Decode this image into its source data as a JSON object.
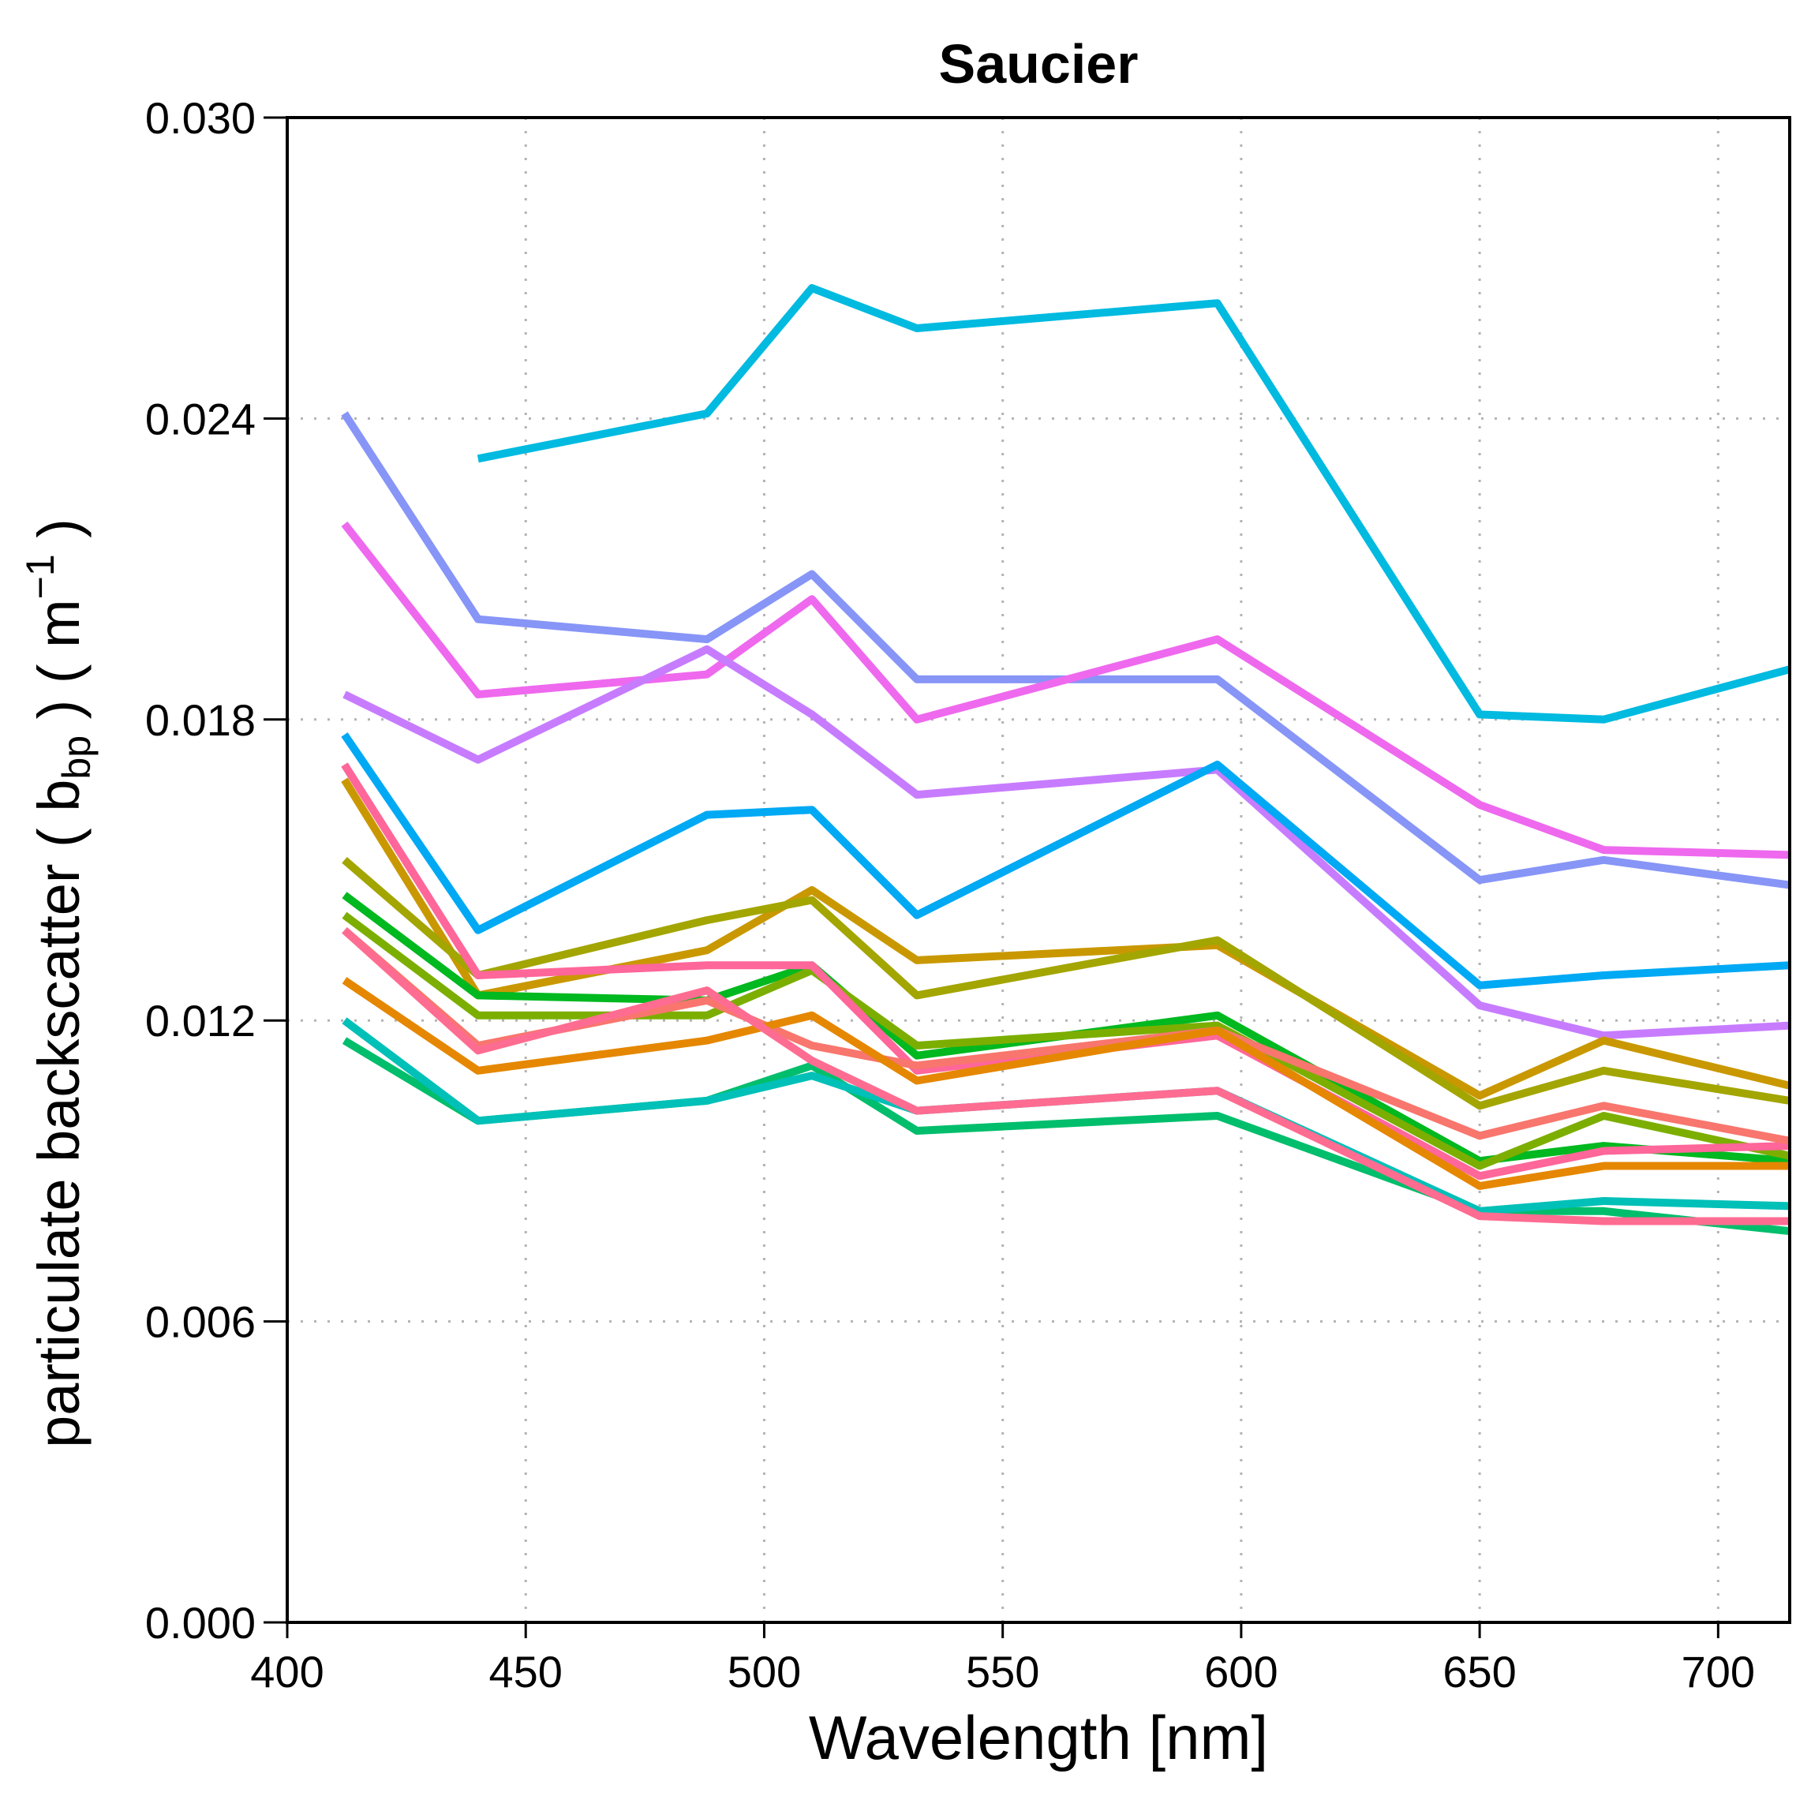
{
  "chart_data": {
    "type": "line",
    "title": "Saucier",
    "xlabel": "Wavelength [nm]",
    "ylabel": {
      "prefix": "particulate backscatter ( ",
      "symbol": "b",
      "subscript": "bp",
      "unit_open": " ) ( m",
      "unit_superscript": "−1",
      "unit_close": " )"
    },
    "xlim": [
      400,
      715
    ],
    "ylim": [
      0,
      0.03
    ],
    "xticks": [
      400,
      450,
      500,
      550,
      600,
      650,
      700
    ],
    "xtick_labels": [
      "400",
      "450",
      "500",
      "550",
      "600",
      "650",
      "700"
    ],
    "yticks": [
      0,
      0.006,
      0.012,
      0.018,
      0.024,
      0.03
    ],
    "ytick_labels": [
      "0.000",
      "0.006",
      "0.012",
      "0.018",
      "0.024",
      "0.030"
    ],
    "grid": true,
    "x": [
      412,
      440,
      488,
      510,
      532,
      595,
      650,
      676,
      715
    ],
    "series": [
      {
        "color": "#00BAE0",
        "values": [
          null,
          0.0232,
          0.0241,
          0.0266,
          0.0258,
          0.0263,
          0.0181,
          0.018,
          0.019
        ]
      },
      {
        "color": "#8795F7",
        "values": [
          0.0241,
          0.02,
          0.0196,
          0.0209,
          0.0188,
          0.0188,
          0.0148,
          0.0152,
          0.0147
        ]
      },
      {
        "color": "#EE69EE",
        "values": [
          0.0219,
          0.0185,
          0.0189,
          0.0204,
          0.018,
          0.0196,
          0.0163,
          0.0154,
          0.0153
        ]
      },
      {
        "color": "#C77CFF",
        "values": [
          0.0185,
          0.0172,
          0.0194,
          0.0181,
          0.0165,
          0.017,
          0.0123,
          0.0117,
          0.0119
        ]
      },
      {
        "color": "#00A9F4",
        "values": [
          0.0177,
          0.0138,
          0.0161,
          0.0162,
          0.0141,
          0.0171,
          0.0127,
          0.0129,
          0.0131
        ]
      },
      {
        "color": "#C99800",
        "values": [
          0.0168,
          0.0125,
          0.0134,
          0.0146,
          0.0132,
          0.0135,
          0.0105,
          0.0116,
          0.0107
        ]
      },
      {
        "color": "#A3A500",
        "values": [
          0.0152,
          0.0129,
          0.014,
          0.0144,
          0.0125,
          0.0136,
          0.0103,
          0.011,
          0.0104
        ]
      },
      {
        "color": "#00B81F",
        "values": [
          0.0145,
          0.0125,
          0.0124,
          0.0131,
          0.0113,
          0.0121,
          0.0092,
          0.0095,
          0.0092
        ]
      },
      {
        "color": "#7CAE00",
        "values": [
          0.0141,
          0.0121,
          0.0121,
          0.013,
          0.0115,
          0.0119,
          0.0091,
          0.0101,
          0.0093
        ]
      },
      {
        "color": "#FF6699",
        "values": [
          0.0171,
          0.0129,
          0.0131,
          0.0131,
          0.011,
          0.0117,
          0.0089,
          0.0094,
          0.0095
        ]
      },
      {
        "color": "#F8766D",
        "values": [
          0.0138,
          0.0115,
          0.0124,
          0.0115,
          0.0111,
          0.0118,
          0.0097,
          0.0103,
          0.0096
        ]
      },
      {
        "color": "#E58700",
        "values": [
          0.0128,
          0.011,
          0.0116,
          0.0121,
          0.0108,
          0.0118,
          0.0087,
          0.0091,
          0.0091
        ]
      },
      {
        "color": "#00BE6C",
        "values": [
          0.0116,
          0.01,
          0.0104,
          0.0111,
          0.0098,
          0.0101,
          0.0082,
          0.0082,
          0.0078
        ]
      },
      {
        "color": "#00C0B8",
        "values": [
          0.012,
          0.01,
          0.0104,
          0.0109,
          0.0102,
          0.0106,
          0.0082,
          0.0084,
          0.0083
        ]
      },
      {
        "color": "#FF6C91",
        "values": [
          0.0138,
          0.0114,
          0.0126,
          0.0112,
          0.0102,
          0.0106,
          0.0081,
          0.008,
          0.008
        ]
      }
    ]
  }
}
